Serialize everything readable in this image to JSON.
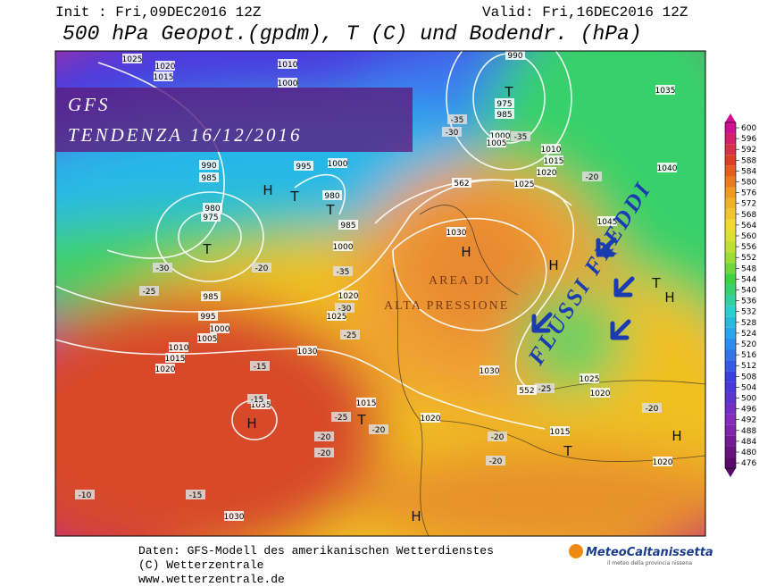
{
  "header": {
    "init": "Init : Fri,09DEC2016 12Z",
    "valid": "Valid: Fri,16DEC2016 12Z",
    "title": "500 hPa Geopot.(gpdm), T (C) und Bodendr. (hPa)"
  },
  "overlay": {
    "line1": "GFS",
    "line2": "TENDENZA 16/12/2016"
  },
  "annotations": {
    "area1": "AREA DI",
    "area2": "ALTA PRESSIONE",
    "flow": "FLUSSI FREDDI"
  },
  "map_labels": [
    "1025",
    "1020",
    "1015",
    "1010",
    "1000",
    "990",
    "975",
    "985",
    "1000",
    "1005",
    "1010",
    "1015",
    "1020",
    "1025",
    "1035",
    "1040",
    "1045",
    "990",
    "985",
    "980",
    "975",
    "1000",
    "995",
    "980",
    "985",
    "1000",
    "1030",
    "1020",
    "1025",
    "985",
    "995",
    "1000",
    "1005",
    "1010",
    "1015",
    "1020",
    "1030",
    "1035",
    "1015",
    "1020",
    "1015",
    "1030",
    "1025",
    "1020",
    "1020",
    "1030",
    "-15",
    "-15",
    "-20",
    "-20",
    "-25",
    "-20",
    "-20",
    "-20",
    "-10",
    "-15",
    "-25",
    "-30",
    "-35",
    "-30",
    "-25",
    "-20",
    "-35",
    "-30",
    "-35",
    "-20",
    "-25",
    "-20",
    "562",
    "552"
  ],
  "markers": [
    "H",
    "T",
    "T",
    "T",
    "T",
    "H",
    "H",
    "H",
    "T",
    "H",
    "T",
    "T",
    "H",
    "H"
  ],
  "colorbar": {
    "ticks": [
      600,
      596,
      592,
      588,
      584,
      580,
      576,
      572,
      568,
      564,
      560,
      556,
      552,
      548,
      544,
      540,
      536,
      532,
      528,
      524,
      520,
      516,
      512,
      508,
      504,
      500,
      496,
      492,
      488,
      484,
      480,
      476
    ]
  },
  "footer": {
    "line1": "Daten: GFS-Modell des amerikanischen Wetterdienstes",
    "line2": "(C) Wetterzentrale",
    "line3": "www.wetterzentrale.de"
  },
  "logo": {
    "name": "MeteoCaltanissetta",
    "tagline": "il meteo della provincia nissena"
  }
}
